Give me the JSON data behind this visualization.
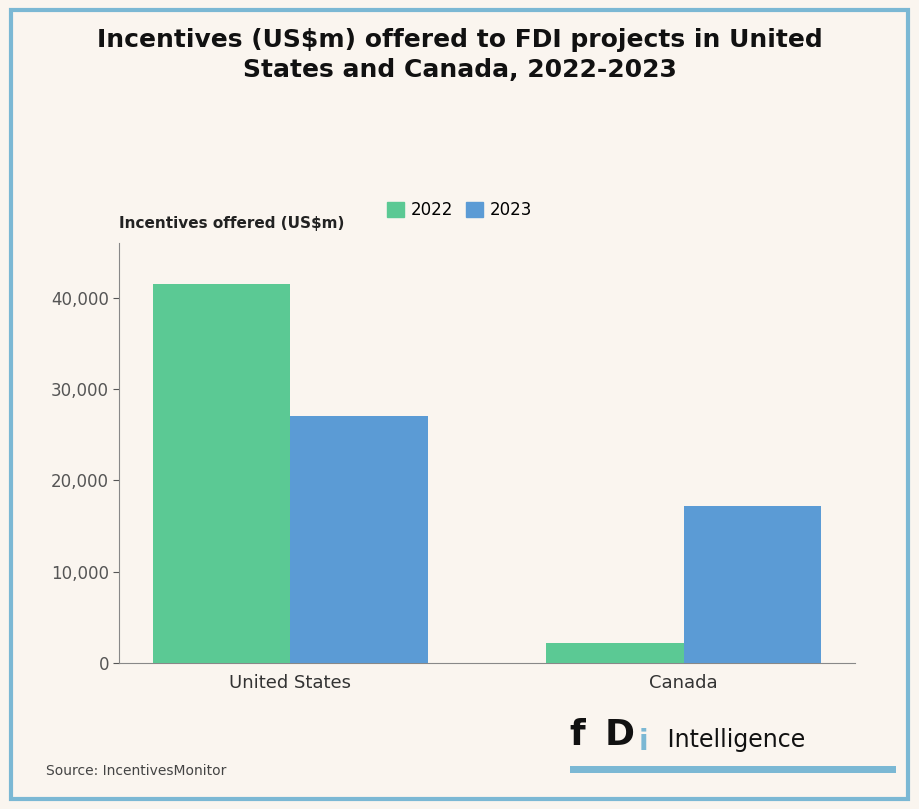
{
  "title": "Incentives (US$m) offered to FDI projects in United\nStates and Canada, 2022-2023",
  "ylabel": "Incentives offered (US$m)",
  "categories": [
    "United States",
    "Canada"
  ],
  "values_2022": [
    41500,
    2200
  ],
  "values_2023": [
    27000,
    17200
  ],
  "color_2022": "#5BC994",
  "color_2023": "#5B9BD5",
  "background_color": "#FAF5EF",
  "border_color": "#7BB8D4",
  "ylim": [
    0,
    46000
  ],
  "yticks": [
    0,
    10000,
    20000,
    30000,
    40000
  ],
  "source_text": "Source: IncentivesMonitor",
  "legend_labels": [
    "2022",
    "2023"
  ],
  "bar_width": 0.35
}
